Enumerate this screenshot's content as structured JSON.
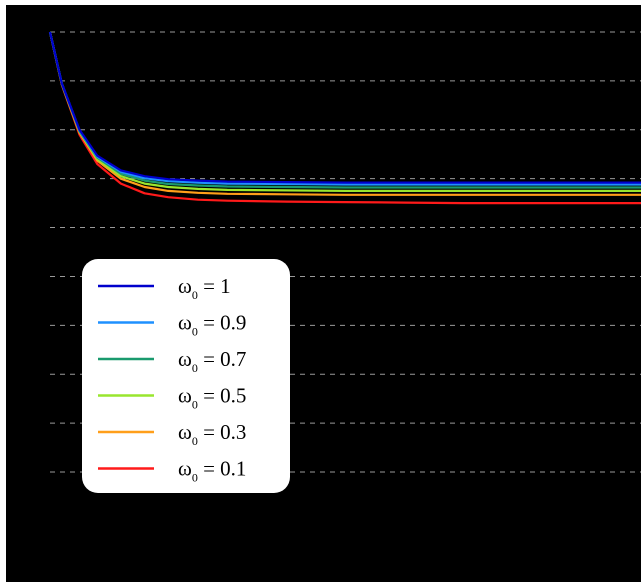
{
  "chart_data": {
    "type": "line",
    "title": "",
    "xlabel": "",
    "ylabel": "",
    "grid": "horizontal dashed",
    "legend_placement": "lower-left",
    "xlim": [
      0,
      100
    ],
    "ylim": [
      0,
      11
    ],
    "series": [
      {
        "name": "ω₀ = 1",
        "label_main": "ω",
        "label_sub": "0",
        "label_rest": " = 1",
        "color": "#0000cc",
        "asymptote": 7.42,
        "x": [
          0,
          2,
          5,
          8,
          12,
          16,
          20,
          25,
          30,
          40,
          50,
          60,
          70,
          80,
          90,
          100
        ],
        "y": [
          10.5,
          9.45,
          8.5,
          7.97,
          7.67,
          7.55,
          7.49,
          7.46,
          7.44,
          7.43,
          7.42,
          7.42,
          7.42,
          7.42,
          7.42,
          7.42
        ]
      },
      {
        "name": "ω₀ = 0.9",
        "label_main": "ω",
        "label_sub": "0",
        "label_rest": " = 0.9",
        "color": "#1e90ff",
        "asymptote": 7.38,
        "x": [
          0,
          2,
          5,
          8,
          12,
          16,
          20,
          25,
          30,
          40,
          50,
          60,
          70,
          80,
          90,
          100
        ],
        "y": [
          10.5,
          9.45,
          8.49,
          7.95,
          7.64,
          7.51,
          7.45,
          7.42,
          7.4,
          7.39,
          7.38,
          7.38,
          7.38,
          7.38,
          7.38,
          7.38
        ]
      },
      {
        "name": "ω₀ = 0.7",
        "label_main": "ω",
        "label_sub": "0",
        "label_rest": " = 0.7",
        "color": "#1a9a6e",
        "asymptote": 7.32,
        "x": [
          0,
          2,
          5,
          8,
          12,
          16,
          20,
          25,
          30,
          40,
          50,
          60,
          70,
          80,
          90,
          100
        ],
        "y": [
          10.5,
          9.44,
          8.47,
          7.93,
          7.6,
          7.46,
          7.39,
          7.36,
          7.34,
          7.33,
          7.32,
          7.32,
          7.32,
          7.32,
          7.32,
          7.32
        ]
      },
      {
        "name": "ω₀ = 0.5",
        "label_main": "ω",
        "label_sub": "0",
        "label_rest": " = 0.5",
        "color": "#99e62e",
        "asymptote": 7.25,
        "x": [
          0,
          2,
          5,
          8,
          12,
          16,
          20,
          25,
          30,
          40,
          50,
          60,
          70,
          80,
          90,
          100
        ],
        "y": [
          10.5,
          9.44,
          8.46,
          7.9,
          7.55,
          7.4,
          7.33,
          7.29,
          7.27,
          7.26,
          7.25,
          7.25,
          7.25,
          7.25,
          7.25,
          7.25
        ]
      },
      {
        "name": "ω₀ = 0.3",
        "label_main": "ω",
        "label_sub": "0",
        "label_rest": " = 0.3",
        "color": "#ff9f1a",
        "asymptote": 7.17,
        "x": [
          0,
          2,
          5,
          8,
          12,
          16,
          20,
          25,
          30,
          40,
          50,
          60,
          70,
          80,
          90,
          100
        ],
        "y": [
          10.5,
          9.43,
          8.44,
          7.87,
          7.5,
          7.33,
          7.25,
          7.21,
          7.19,
          7.18,
          7.17,
          7.17,
          7.17,
          7.17,
          7.17,
          7.17
        ]
      },
      {
        "name": "ω₀ = 0.1",
        "label_main": "ω",
        "label_sub": "0",
        "label_rest": " = 0.1",
        "color": "#ff1a1a",
        "asymptote": 7.0,
        "x": [
          0,
          2,
          5,
          8,
          12,
          16,
          20,
          25,
          30,
          40,
          50,
          60,
          70,
          80,
          90,
          100
        ],
        "y": [
          10.5,
          9.42,
          8.4,
          7.8,
          7.4,
          7.2,
          7.12,
          7.07,
          7.05,
          7.03,
          7.02,
          7.01,
          7.0,
          7.0,
          7.0,
          7.0
        ]
      }
    ],
    "gridlines_y": [
      1.5,
      2.5,
      3.5,
      4.5,
      5.5,
      6.5,
      7.5,
      8.5,
      9.5,
      10.5
    ]
  }
}
